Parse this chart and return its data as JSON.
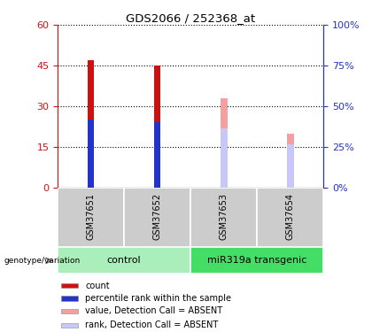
{
  "title": "GDS2066 / 252368_at",
  "samples": [
    "GSM37651",
    "GSM37652",
    "GSM37653",
    "GSM37654"
  ],
  "count_values": [
    47,
    45,
    0,
    0
  ],
  "percentile_values": [
    25,
    24,
    0,
    0
  ],
  "absent_value_values": [
    0,
    0,
    33,
    20
  ],
  "absent_rank_values": [
    0,
    0,
    22,
    16
  ],
  "ylim_left": [
    0,
    60
  ],
  "ylim_right": [
    0,
    100
  ],
  "yticks_left": [
    0,
    15,
    30,
    45,
    60
  ],
  "yticks_right": [
    0,
    25,
    50,
    75,
    100
  ],
  "color_count": "#cc1111",
  "color_percentile": "#2233cc",
  "color_absent_value": "#f4a0a0",
  "color_absent_rank": "#c8c8f8",
  "color_group_control": "#aaeebb",
  "color_group_transgenic": "#44dd66",
  "color_sample_bg": "#cccccc",
  "bar_width": 0.1,
  "group_labels": [
    "control",
    "miR319a transgenic"
  ],
  "legend_items": [
    {
      "label": "count",
      "color": "#cc1111"
    },
    {
      "label": "percentile rank within the sample",
      "color": "#2233cc"
    },
    {
      "label": "value, Detection Call = ABSENT",
      "color": "#f4a0a0"
    },
    {
      "label": "rank, Detection Call = ABSENT",
      "color": "#c8c8f8"
    }
  ]
}
